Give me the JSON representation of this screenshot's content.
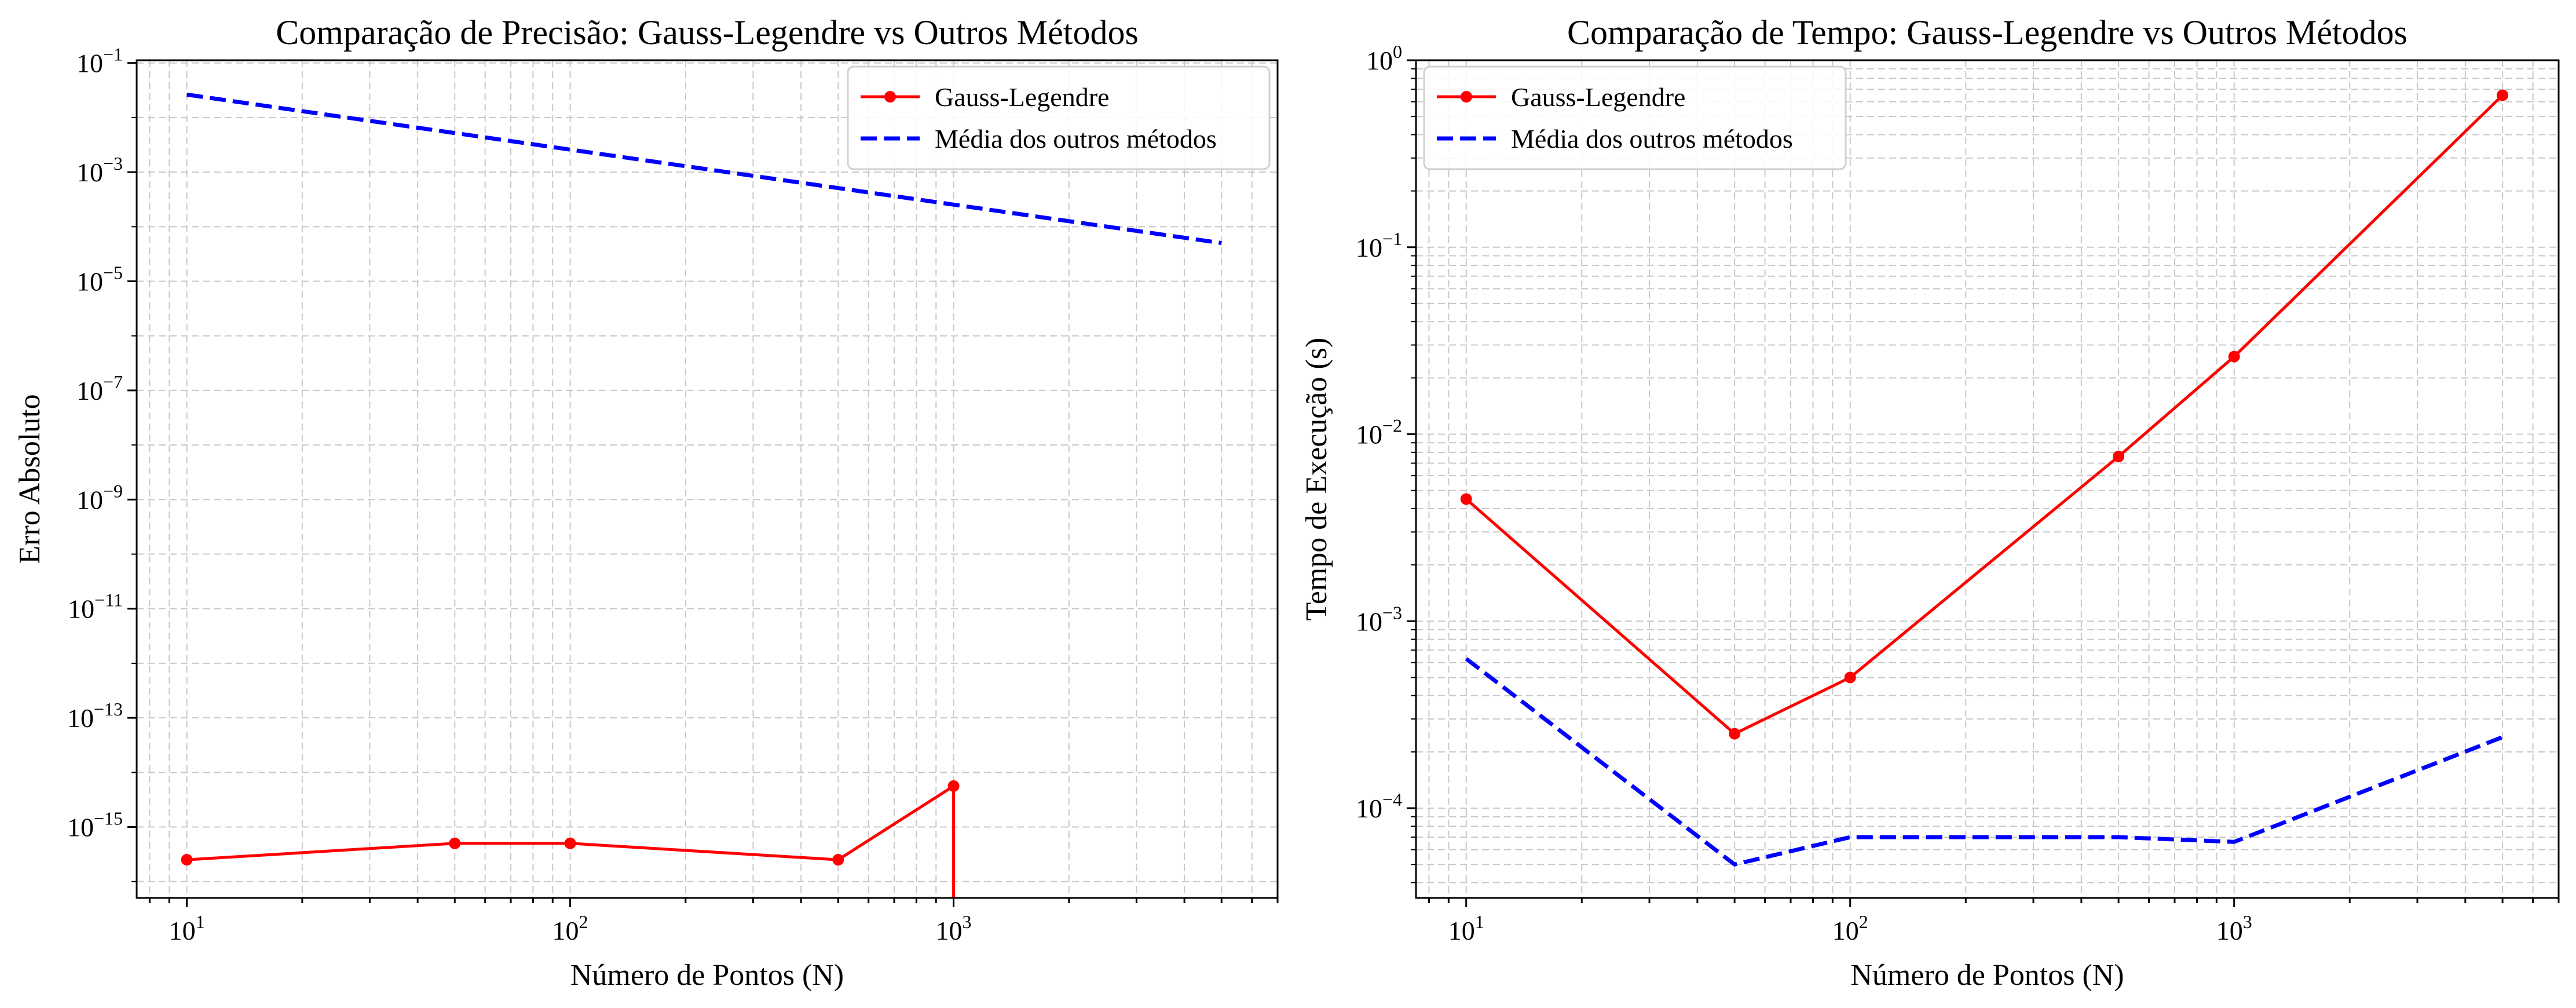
{
  "chart_data": [
    {
      "type": "line",
      "title": "Comparação de Precisão: Gauss-Legendre vs Outros Métodos",
      "xlabel": "Número de Pontos (N)",
      "ylabel": "Erro Absoluto",
      "xscale": "log",
      "yscale": "log",
      "xlim": [
        7.4,
        7000
      ],
      "ylim_exp": [
        -16.3,
        -0.95
      ],
      "x_ticks": [
        {
          "value": 10,
          "base": "10",
          "exp": "1"
        },
        {
          "value": 100,
          "base": "10",
          "exp": "2"
        },
        {
          "value": 1000,
          "base": "10",
          "exp": "3"
        }
      ],
      "y_ticks": [
        {
          "exp_value": -1,
          "base": "10",
          "exp": "−1"
        },
        {
          "exp_value": -3,
          "base": "10",
          "exp": "−3"
        },
        {
          "exp_value": -5,
          "base": "10",
          "exp": "−5"
        },
        {
          "exp_value": -7,
          "base": "10",
          "exp": "−7"
        },
        {
          "exp_value": -9,
          "base": "10",
          "exp": "−9"
        },
        {
          "exp_value": -11,
          "base": "10",
          "exp": "−11"
        },
        {
          "exp_value": -13,
          "base": "10",
          "exp": "−13"
        },
        {
          "exp_value": -15,
          "base": "10",
          "exp": "−15"
        }
      ],
      "grid": true,
      "legend_position": "upper right",
      "series": [
        {
          "name": "Gauss-Legendre",
          "color": "#ff0000",
          "style": "solid",
          "marker": "circle",
          "x": [
            10,
            50,
            100,
            500,
            1000
          ],
          "y_exp": [
            -15.6,
            -15.3,
            -15.3,
            -15.6,
            -14.25
          ],
          "drops_below_axis_at": 1000
        },
        {
          "name": "Média dos outros métodos",
          "color": "#0000ff",
          "style": "dashed",
          "marker": "none",
          "x": [
            10,
            5000
          ],
          "y_exp": [
            -1.58,
            -4.3
          ]
        }
      ]
    },
    {
      "type": "line",
      "title": "Comparação de Tempo: Gauss-Legendre vs Outros Métodos",
      "xlabel": "Número de Pontos (N)",
      "ylabel": "Tempo de Execução (s)",
      "xscale": "log",
      "yscale": "log",
      "xlim": [
        7.4,
        7000
      ],
      "ylim_exp": [
        -4.48,
        0
      ],
      "x_ticks": [
        {
          "value": 10,
          "base": "10",
          "exp": "1"
        },
        {
          "value": 100,
          "base": "10",
          "exp": "2"
        },
        {
          "value": 1000,
          "base": "10",
          "exp": "3"
        }
      ],
      "y_ticks": [
        {
          "exp_value": -4,
          "base": "10",
          "exp": "−4"
        },
        {
          "exp_value": -3,
          "base": "10",
          "exp": "−3"
        },
        {
          "exp_value": -2,
          "base": "10",
          "exp": "−2"
        },
        {
          "exp_value": -1,
          "base": "10",
          "exp": "−1"
        },
        {
          "exp_value": 0,
          "base": "10",
          "exp": "0"
        }
      ],
      "grid": true,
      "legend_position": "upper left",
      "series": [
        {
          "name": "Gauss-Legendre",
          "color": "#ff0000",
          "style": "solid",
          "marker": "circle",
          "x": [
            10,
            50,
            100,
            500,
            1000,
            5000
          ],
          "y": [
            0.0045,
            0.00025,
            0.0005,
            0.0076,
            0.026,
            0.65
          ]
        },
        {
          "name": "Média dos outros métodos",
          "color": "#0000ff",
          "style": "dashed",
          "marker": "none",
          "x": [
            10,
            50,
            100,
            500,
            1000,
            5000
          ],
          "y": [
            0.00063,
            5e-05,
            7e-05,
            7e-05,
            6.6e-05,
            0.00024
          ]
        }
      ]
    }
  ]
}
